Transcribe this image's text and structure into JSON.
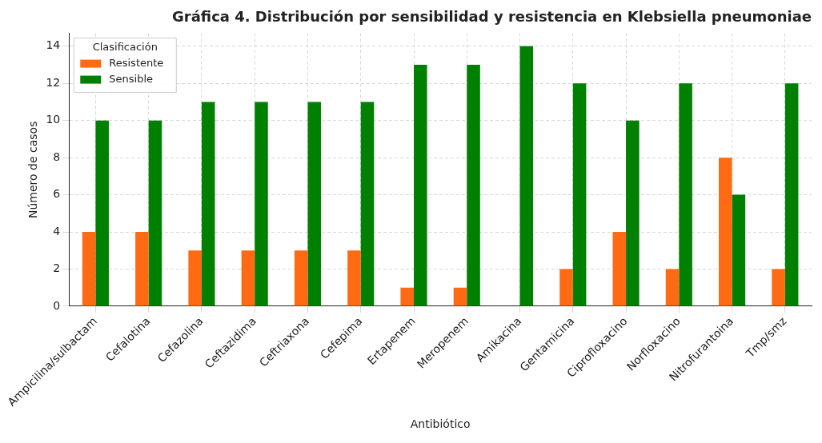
{
  "chart_data": {
    "type": "bar",
    "title": "Gráfica 4. Distribución por sensibilidad y resistencia en Klebsiella pneumoniae",
    "xlabel": "Antibiótico",
    "ylabel": "Número de casos",
    "legend_title": "Clasificación",
    "categories": [
      "Ampicilina/sulbactam",
      "Cefalotina",
      "Cefazolina",
      "Ceftazidima",
      "Ceftriaxona",
      "Cefepima",
      "Ertapenem",
      "Meropenem",
      "Amikacina",
      "Gentamicina",
      "Ciprofloxacino",
      "Norfloxacino",
      "Nitrofurantoina",
      "Tmp/smz"
    ],
    "series": [
      {
        "name": "Resistente",
        "color": "#ff6a13",
        "values": [
          4,
          4,
          3,
          3,
          3,
          3,
          1,
          1,
          0,
          2,
          4,
          2,
          8,
          2
        ]
      },
      {
        "name": "Sensible",
        "color": "#008000",
        "values": [
          10,
          10,
          11,
          11,
          11,
          11,
          13,
          13,
          14,
          12,
          10,
          12,
          6,
          12
        ]
      }
    ],
    "ylim": [
      0,
      14.7
    ],
    "yticks": [
      0,
      2,
      4,
      6,
      8,
      10,
      12,
      14
    ],
    "grid": true,
    "legend": "top left"
  }
}
